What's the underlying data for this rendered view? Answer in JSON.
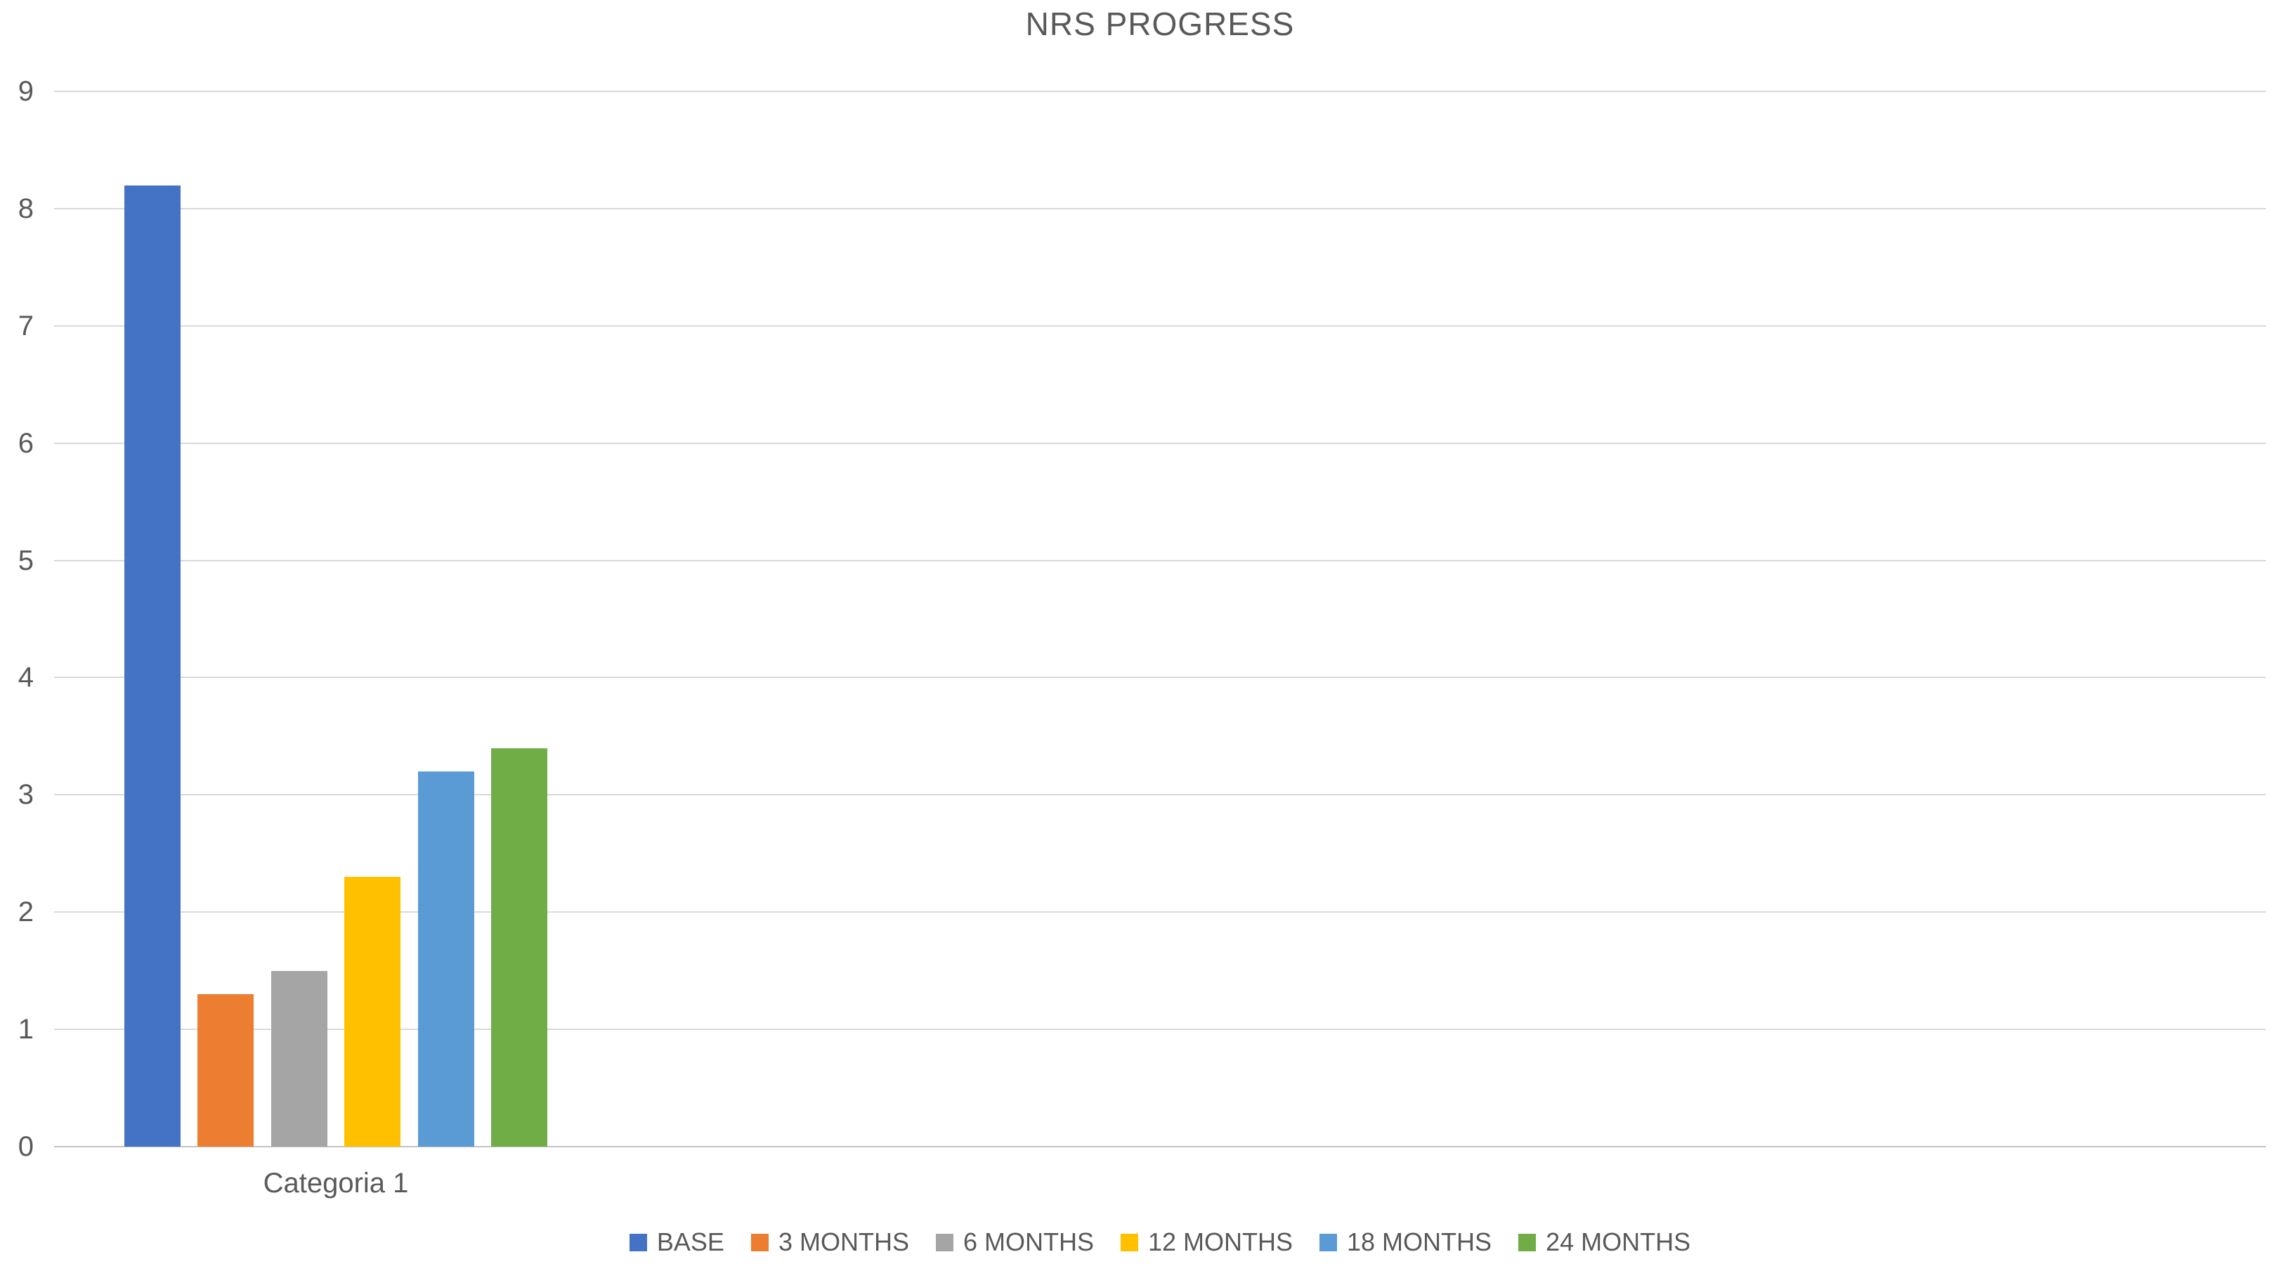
{
  "chart_data": {
    "type": "bar",
    "title": "NRS PROGRESS",
    "categories": [
      "Categoria 1"
    ],
    "series": [
      {
        "name": "BASE",
        "values": [
          8.2
        ],
        "color": "#4472C4"
      },
      {
        "name": "3 MONTHS",
        "values": [
          1.3
        ],
        "color": "#ED7D31"
      },
      {
        "name": "6 MONTHS",
        "values": [
          1.5
        ],
        "color": "#A5A5A5"
      },
      {
        "name": "12 MONTHS",
        "values": [
          2.3
        ],
        "color": "#FFC000"
      },
      {
        "name": "18 MONTHS",
        "values": [
          3.2
        ],
        "color": "#5B9BD5"
      },
      {
        "name": "24 MONTHS",
        "values": [
          3.4
        ],
        "color": "#70AD47"
      }
    ],
    "xlabel": "",
    "ylabel": "",
    "ylim": [
      0,
      9
    ],
    "ytick_step": 1,
    "grid": true,
    "legend_position": "bottom",
    "colors": {
      "text": "#595959",
      "gridline": "#D9D9D9",
      "axis_line": "#C3C3C3",
      "background": "#FFFFFF"
    }
  }
}
